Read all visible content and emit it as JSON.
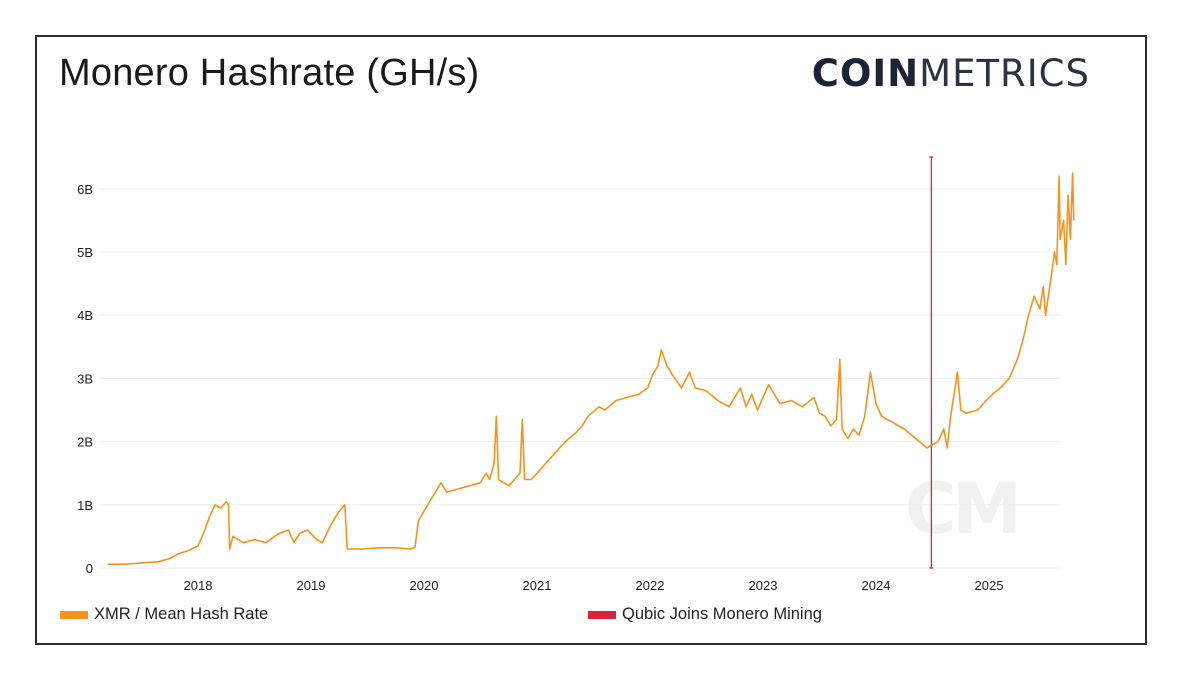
{
  "header": {
    "title": "Monero Hashrate (GH/s)",
    "logo_bold": "COIN",
    "logo_light": "METRICS"
  },
  "watermark": "CM",
  "colors": {
    "series": "#f7931a",
    "event_line": "#d9253b",
    "grid": "#eeeeee",
    "text": "#222222"
  },
  "chart_data": {
    "type": "line",
    "title": "Monero Hashrate (GH/s)",
    "xlabel": "",
    "ylabel": "",
    "x_ticks": [
      "2018",
      "2019",
      "2020",
      "2021",
      "2022",
      "2023",
      "2024",
      "2025"
    ],
    "y_ticks": [
      "0",
      "1B",
      "2B",
      "3B",
      "4B",
      "5B",
      "6B"
    ],
    "ylim": [
      0,
      6500000000
    ],
    "xlim": [
      2017.2,
      2025.75
    ],
    "grid": true,
    "legend_position": "bottom",
    "series": [
      {
        "name": "XMR / Mean Hash Rate",
        "color": "#f7931a",
        "points": [
          [
            2017.2,
            0.06
          ],
          [
            2017.35,
            0.06
          ],
          [
            2017.5,
            0.08
          ],
          [
            2017.65,
            0.1
          ],
          [
            2017.75,
            0.15
          ],
          [
            2017.82,
            0.22
          ],
          [
            2017.92,
            0.28
          ],
          [
            2018.0,
            0.35
          ],
          [
            2018.05,
            0.55
          ],
          [
            2018.1,
            0.8
          ],
          [
            2018.15,
            1.0
          ],
          [
            2018.2,
            0.95
          ],
          [
            2018.25,
            1.05
          ],
          [
            2018.27,
            1.0
          ],
          [
            2018.28,
            0.3
          ],
          [
            2018.31,
            0.5
          ],
          [
            2018.4,
            0.4
          ],
          [
            2018.5,
            0.45
          ],
          [
            2018.6,
            0.4
          ],
          [
            2018.72,
            0.55
          ],
          [
            2018.8,
            0.6
          ],
          [
            2018.85,
            0.4
          ],
          [
            2018.9,
            0.55
          ],
          [
            2018.97,
            0.6
          ],
          [
            2019.05,
            0.45
          ],
          [
            2019.1,
            0.4
          ],
          [
            2019.18,
            0.7
          ],
          [
            2019.25,
            0.9
          ],
          [
            2019.3,
            1.0
          ],
          [
            2019.32,
            0.3
          ],
          [
            2019.45,
            0.3
          ],
          [
            2019.6,
            0.32
          ],
          [
            2019.75,
            0.32
          ],
          [
            2019.88,
            0.3
          ],
          [
            2019.92,
            0.33
          ],
          [
            2019.95,
            0.75
          ],
          [
            2020.0,
            0.9
          ],
          [
            2020.05,
            1.05
          ],
          [
            2020.1,
            1.2
          ],
          [
            2020.15,
            1.35
          ],
          [
            2020.2,
            1.2
          ],
          [
            2020.3,
            1.25
          ],
          [
            2020.4,
            1.3
          ],
          [
            2020.5,
            1.35
          ],
          [
            2020.55,
            1.5
          ],
          [
            2020.58,
            1.4
          ],
          [
            2020.62,
            1.65
          ],
          [
            2020.64,
            2.4
          ],
          [
            2020.66,
            1.4
          ],
          [
            2020.75,
            1.3
          ],
          [
            2020.8,
            1.4
          ],
          [
            2020.85,
            1.5
          ],
          [
            2020.87,
            2.35
          ],
          [
            2020.89,
            1.4
          ],
          [
            2020.95,
            1.4
          ],
          [
            2021.05,
            1.6
          ],
          [
            2021.15,
            1.8
          ],
          [
            2021.25,
            2.0
          ],
          [
            2021.35,
            2.15
          ],
          [
            2021.4,
            2.25
          ],
          [
            2021.45,
            2.4
          ],
          [
            2021.55,
            2.55
          ],
          [
            2021.6,
            2.5
          ],
          [
            2021.7,
            2.65
          ],
          [
            2021.8,
            2.7
          ],
          [
            2021.9,
            2.75
          ],
          [
            2021.98,
            2.85
          ],
          [
            2022.02,
            3.05
          ],
          [
            2022.07,
            3.2
          ],
          [
            2022.1,
            3.45
          ],
          [
            2022.15,
            3.2
          ],
          [
            2022.2,
            3.05
          ],
          [
            2022.28,
            2.85
          ],
          [
            2022.35,
            3.1
          ],
          [
            2022.4,
            2.85
          ],
          [
            2022.5,
            2.8
          ],
          [
            2022.6,
            2.65
          ],
          [
            2022.7,
            2.55
          ],
          [
            2022.8,
            2.85
          ],
          [
            2022.85,
            2.55
          ],
          [
            2022.9,
            2.75
          ],
          [
            2022.95,
            2.5
          ],
          [
            2023.05,
            2.9
          ],
          [
            2023.15,
            2.6
          ],
          [
            2023.25,
            2.65
          ],
          [
            2023.35,
            2.55
          ],
          [
            2023.45,
            2.7
          ],
          [
            2023.5,
            2.45
          ],
          [
            2023.55,
            2.4
          ],
          [
            2023.6,
            2.25
          ],
          [
            2023.65,
            2.35
          ],
          [
            2023.68,
            3.3
          ],
          [
            2023.7,
            2.2
          ],
          [
            2023.75,
            2.05
          ],
          [
            2023.8,
            2.2
          ],
          [
            2023.85,
            2.1
          ],
          [
            2023.9,
            2.4
          ],
          [
            2023.95,
            3.1
          ],
          [
            2024.0,
            2.6
          ],
          [
            2024.05,
            2.4
          ],
          [
            2024.15,
            2.3
          ],
          [
            2024.25,
            2.2
          ],
          [
            2024.35,
            2.05
          ],
          [
            2024.45,
            1.9
          ],
          [
            2024.55,
            2.0
          ],
          [
            2024.6,
            2.2
          ],
          [
            2024.63,
            1.9
          ],
          [
            2024.66,
            2.4
          ],
          [
            2024.7,
            2.85
          ],
          [
            2024.72,
            3.1
          ],
          [
            2024.75,
            2.5
          ],
          [
            2024.8,
            2.45
          ],
          [
            2024.9,
            2.5
          ],
          [
            2025.0,
            2.7
          ],
          [
            2025.1,
            2.85
          ],
          [
            2025.18,
            3.0
          ],
          [
            2025.25,
            3.3
          ],
          [
            2025.3,
            3.6
          ],
          [
            2025.35,
            4.0
          ],
          [
            2025.4,
            4.3
          ],
          [
            2025.45,
            4.1
          ],
          [
            2025.48,
            4.45
          ],
          [
            2025.5,
            4.0
          ],
          [
            2025.55,
            4.6
          ],
          [
            2025.58,
            5.0
          ],
          [
            2025.6,
            4.8
          ],
          [
            2025.62,
            6.2
          ],
          [
            2025.63,
            5.2
          ],
          [
            2025.66,
            5.5
          ],
          [
            2025.68,
            4.8
          ],
          [
            2025.7,
            5.9
          ],
          [
            2025.72,
            5.2
          ],
          [
            2025.74,
            6.25
          ],
          [
            2025.75,
            5.5
          ]
        ]
      },
      {
        "name": "Qubic Joins Monero Mining",
        "color": "#d9253b",
        "event_x": 2024.49,
        "kind": "vertical_line"
      }
    ]
  }
}
